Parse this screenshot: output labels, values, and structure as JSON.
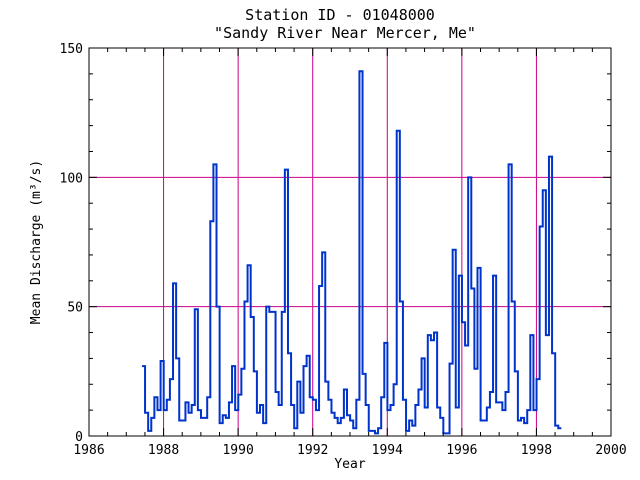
{
  "chart_data": {
    "type": "line",
    "step": true,
    "title": "Station ID - 01048000",
    "subtitle": "\"Sandy River Near Mercer, Me\"",
    "xlabel": "Year",
    "ylabel": "Mean Discharge (m³/s)",
    "xlim": [
      1986,
      2000
    ],
    "ylim": [
      0,
      150
    ],
    "xticks": [
      1986,
      1988,
      1990,
      1992,
      1994,
      1996,
      1998,
      2000
    ],
    "yticks": [
      0,
      50,
      100,
      150
    ],
    "grid": true,
    "gridlines_x": [
      1988,
      1990,
      1992,
      1994,
      1996,
      1998
    ],
    "gridlines_y": [
      50,
      100
    ],
    "colors": {
      "series": "#0033cc",
      "grid": "#cc0088",
      "axis": "#000000"
    },
    "series": [
      {
        "start_year": 1987.42,
        "step_years": 0.08333,
        "values": [
          27,
          9,
          2,
          7,
          15,
          10,
          29,
          10,
          14,
          22,
          59,
          30,
          6,
          6,
          13,
          9,
          12,
          49,
          10,
          7,
          7,
          15,
          83,
          105,
          50,
          5,
          8,
          7,
          13,
          27,
          10,
          16,
          26,
          52,
          66,
          46,
          25,
          9,
          12,
          5,
          50,
          48,
          48,
          17,
          12,
          48,
          103,
          32,
          12,
          3,
          21,
          9,
          27,
          31,
          15,
          14,
          10,
          58,
          71,
          21,
          14,
          9,
          7,
          5,
          7,
          18,
          8,
          6,
          3,
          14,
          141,
          24,
          12,
          2,
          2,
          1,
          3,
          15,
          36,
          10,
          12,
          20,
          118,
          52,
          14,
          2,
          6,
          4,
          12,
          18,
          30,
          11,
          39,
          37,
          40,
          11,
          7,
          1,
          1,
          28,
          72,
          11,
          62,
          44,
          35,
          100,
          57,
          26,
          65,
          6,
          6,
          11,
          17,
          62,
          13,
          13,
          10,
          17,
          105,
          52,
          25,
          6,
          7,
          5,
          10,
          39,
          10,
          22,
          81,
          95,
          39,
          108,
          32,
          4,
          3
        ]
      }
    ]
  }
}
